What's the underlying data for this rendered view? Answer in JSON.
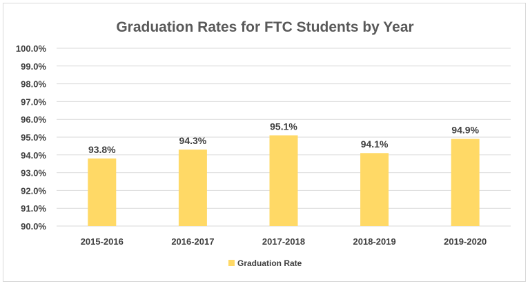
{
  "chart_data": {
    "type": "bar",
    "title": "Graduation Rates for FTC Students by Year",
    "categories": [
      "2015-2016",
      "2016-2017",
      "2017-2018",
      "2018-2019",
      "2019-2020"
    ],
    "series": [
      {
        "name": "Graduation Rate",
        "values": [
          93.8,
          94.3,
          95.1,
          94.1,
          94.9
        ],
        "labels": [
          "93.8%",
          "94.3%",
          "95.1%",
          "94.1%",
          "94.9%"
        ],
        "color": "#ffd966"
      }
    ],
    "ylim": [
      90.0,
      100.0
    ],
    "yticks": [
      90.0,
      91.0,
      92.0,
      93.0,
      94.0,
      95.0,
      96.0,
      97.0,
      98.0,
      99.0,
      100.0
    ],
    "ytick_labels": [
      "90.0%",
      "91.0%",
      "92.0%",
      "93.0%",
      "94.0%",
      "95.0%",
      "96.0%",
      "97.0%",
      "98.0%",
      "99.0%",
      "100.0%"
    ],
    "grid": true,
    "legend": "bottom",
    "text_color": "#404040",
    "title_color": "#595959",
    "grid_color": "#d9d9d9"
  }
}
